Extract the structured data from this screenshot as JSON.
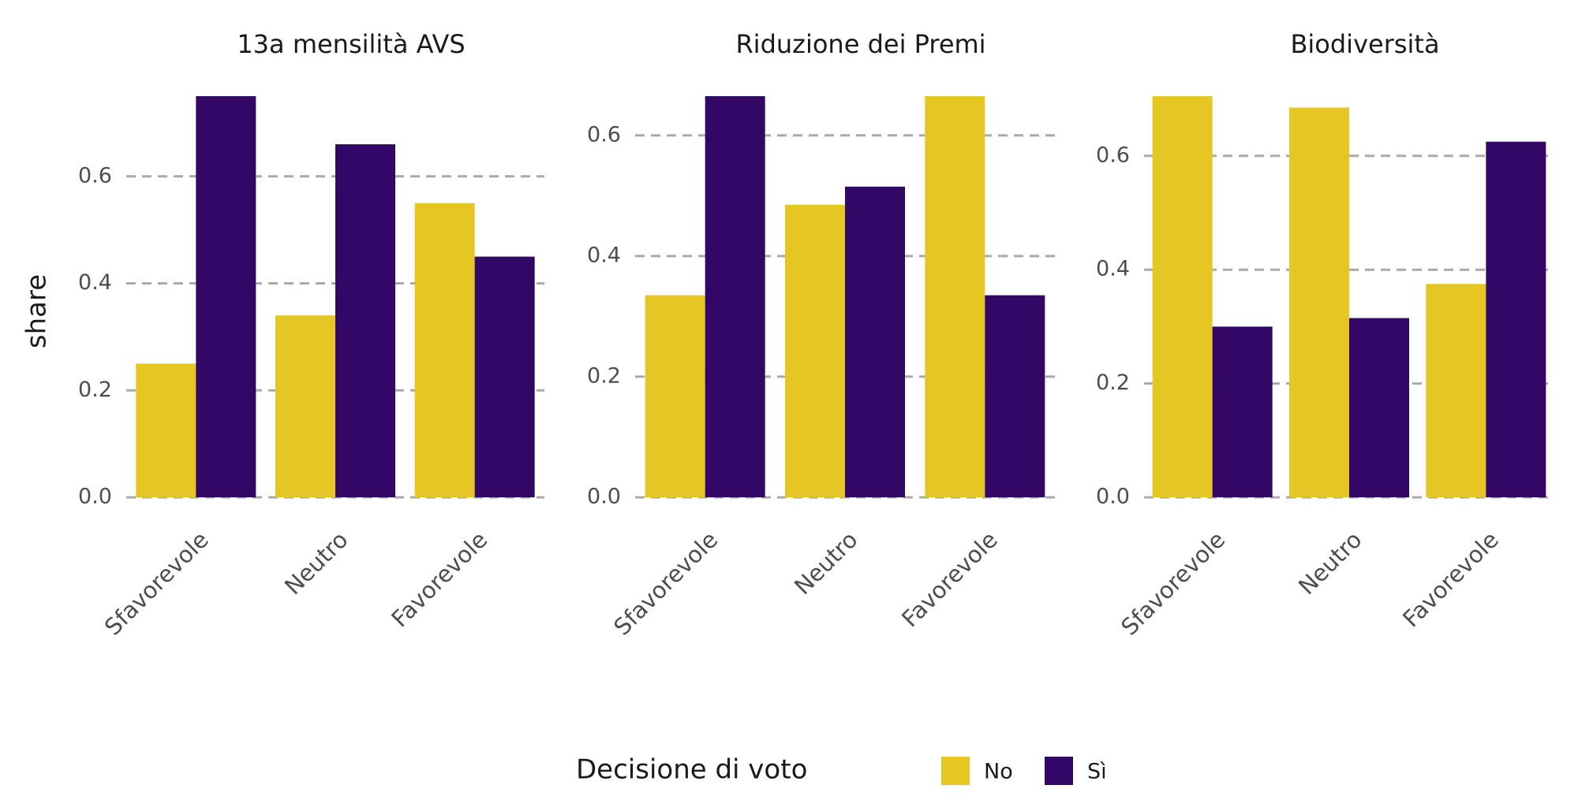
{
  "chart_data": {
    "type": "bar",
    "ylabel": "share",
    "categories": [
      "Sfavorevole",
      "Neutro",
      "Favorevole"
    ],
    "legend": {
      "title": "Decisione di voto",
      "placement": "bottom",
      "entries": [
        {
          "name": "No",
          "color": "#E6C622"
        },
        {
          "name": "Sì",
          "color": "#330766"
        }
      ]
    },
    "grid": {
      "major_y": true,
      "style": "dashed",
      "color": "#AAAAAA"
    },
    "panels": [
      {
        "title": "13a mensilità AVS",
        "ylim": [
          0,
          0.75
        ],
        "yticks": [
          0.0,
          0.2,
          0.4,
          0.6
        ],
        "ytick_labels": [
          "0.0",
          "0.2",
          "0.4",
          "0.6"
        ],
        "series": [
          {
            "name": "No",
            "values": [
              0.25,
              0.34,
              0.55
            ]
          },
          {
            "name": "Sì",
            "values": [
              0.75,
              0.66,
              0.45
            ]
          }
        ]
      },
      {
        "title": "Riduzione dei Premi",
        "ylim": [
          0,
          0.665
        ],
        "yticks": [
          0.0,
          0.2,
          0.4,
          0.6
        ],
        "ytick_labels": [
          "0.0",
          "0.2",
          "0.4",
          "0.6"
        ],
        "series": [
          {
            "name": "No",
            "values": [
              0.335,
              0.485,
              0.665
            ]
          },
          {
            "name": "Sì",
            "values": [
              0.665,
              0.515,
              0.335
            ]
          }
        ]
      },
      {
        "title": "Biodiversità",
        "ylim": [
          0,
          0.705
        ],
        "yticks": [
          0.0,
          0.2,
          0.4,
          0.6
        ],
        "ytick_labels": [
          "0.0",
          "0.2",
          "0.4",
          "0.6"
        ],
        "series": [
          {
            "name": "No",
            "values": [
              0.705,
              0.685,
              0.375
            ]
          },
          {
            "name": "Sì",
            "values": [
              0.3,
              0.315,
              0.625
            ]
          }
        ]
      }
    ]
  }
}
